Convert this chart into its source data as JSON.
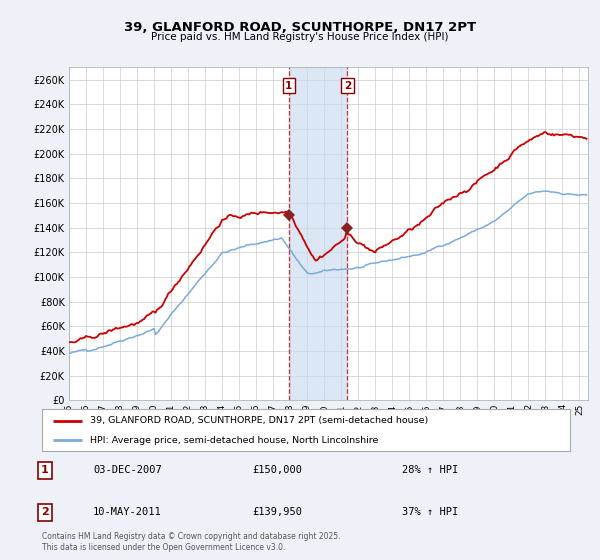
{
  "title": "39, GLANFORD ROAD, SCUNTHORPE, DN17 2PT",
  "subtitle": "Price paid vs. HM Land Registry's House Price Index (HPI)",
  "legend_line1": "39, GLANFORD ROAD, SCUNTHORPE, DN17 2PT (semi-detached house)",
  "legend_line2": "HPI: Average price, semi-detached house, North Lincolnshire",
  "footnote": "Contains HM Land Registry data © Crown copyright and database right 2025.\nThis data is licensed under the Open Government Licence v3.0.",
  "sale1_label": "1",
  "sale1_date": "03-DEC-2007",
  "sale1_price": "£150,000",
  "sale1_hpi": "28% ↑ HPI",
  "sale2_label": "2",
  "sale2_date": "10-MAY-2011",
  "sale2_price": "£139,950",
  "sale2_hpi": "37% ↑ HPI",
  "sale1_x": 2007.92,
  "sale2_x": 2011.36,
  "ylim": [
    0,
    270000
  ],
  "xlim_start": 1995,
  "xlim_end": 2025.5,
  "bg_color": "#eef2f8",
  "plot_bg": "#ffffff",
  "grid_color": "#cccccc",
  "red_line_color": "#cc0000",
  "blue_line_color": "#7aaadd",
  "shade_color": "#ccddf0",
  "dashed_color": "#cc3333",
  "marker_color": "#882222"
}
